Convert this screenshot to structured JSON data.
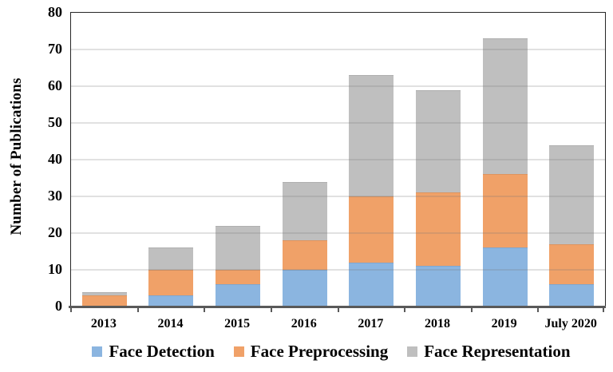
{
  "chart_data": {
    "type": "bar",
    "stacked": true,
    "ylabel": "Number of Publications",
    "xlabel": "",
    "ylim": [
      0,
      80
    ],
    "ytick_step": 10,
    "grid": "horizontal",
    "legend_position": "bottom",
    "categories": [
      "2013",
      "2014",
      "2015",
      "2016",
      "2017",
      "2018",
      "2019",
      "July 2020"
    ],
    "series": [
      {
        "name": "Face Detection",
        "color": "#8BB5E0",
        "values": [
          0,
          3,
          6,
          10,
          12,
          11,
          16,
          6
        ]
      },
      {
        "name": "Face Preprocessing",
        "color": "#F0A168",
        "values": [
          3,
          7,
          4,
          8,
          18,
          20,
          20,
          11
        ]
      },
      {
        "name": "Face Representation",
        "color": "#BFBFBF",
        "values": [
          1,
          6,
          12,
          16,
          33,
          28,
          37,
          27
        ]
      }
    ],
    "totals": [
      4,
      16,
      22,
      34,
      63,
      59,
      73,
      44
    ]
  },
  "colors": {
    "axis_line": "#595959",
    "plot_border": "#262626",
    "gridline": "#DDDDDD",
    "text": "#000000",
    "background": "#FFFFFF"
  }
}
